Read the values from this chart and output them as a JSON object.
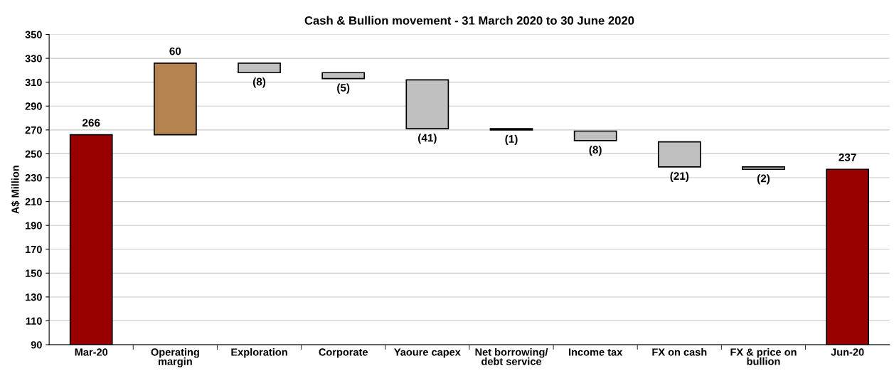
{
  "chart_data": {
    "type": "bar",
    "title": "Cash & Bullion movement - 31 March 2020 to 30 June 2020",
    "ylabel": "A$ Million",
    "categories": [
      "Mar-20",
      "Operating\nmargin",
      "Exploration",
      "Corporate",
      "Yaoure capex",
      "Net borrowing/\ndebt service",
      "Income tax",
      "FX on cash",
      "FX & price on\nbullion",
      "Jun-20"
    ],
    "values": [
      266,
      60,
      -8,
      -5,
      -41,
      -1,
      -8,
      -21,
      -2,
      237
    ],
    "base": [
      null,
      266,
      326,
      318,
      312,
      271,
      269,
      260,
      239,
      null
    ],
    "colors": [
      "#990000",
      "#b5834f",
      "#c0c0c0",
      "#c0c0c0",
      "#c0c0c0",
      "#c0c0c0",
      "#c0c0c0",
      "#c0c0c0",
      "#c0c0c0",
      "#990000"
    ],
    "value_labels": [
      "266",
      "60",
      "(8)",
      "(5)",
      "(41)",
      "(1)",
      "(8)",
      "(21)",
      "(2)",
      "237"
    ],
    "ylim": [
      90,
      350
    ],
    "yticks": [
      90,
      110,
      130,
      150,
      170,
      190,
      210,
      230,
      250,
      270,
      290,
      310,
      330,
      350
    ],
    "grid": "y",
    "legend": false
  }
}
